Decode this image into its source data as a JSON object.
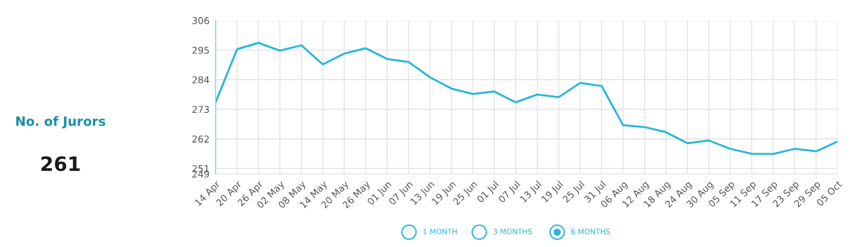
{
  "chart_data": {
    "type": "line",
    "title": "No. of Jurors",
    "subtitle": "261",
    "categories": [
      "14 Apr",
      "20 Apr",
      "26 Apr",
      "02 May",
      "08 May",
      "14 May",
      "20 May",
      "26 May",
      "01 Jun",
      "07 Jun",
      "13 Jun",
      "19 Jun",
      "25 Jun",
      "01 Jul",
      "07 Jul",
      "13 Jul",
      "19 Jul",
      "25 Jul",
      "31 Jul",
      "06 Aug",
      "12 Aug",
      "18 Aug",
      "24 Aug",
      "30 Aug",
      "05 Sep",
      "11 Sep",
      "17 Sep",
      "23 Sep",
      "29 Sep",
      "05 Oct"
    ],
    "series": [
      {
        "color": "#29b6d9",
        "values": [
          275.5,
          295.3,
          297.7,
          294.8,
          296.8,
          289.7,
          293.7,
          295.7,
          291.7,
          290.6,
          284.9,
          280.7,
          278.7,
          279.6,
          275.6,
          278.5,
          277.5,
          282.8,
          281.7,
          267.1,
          266.4,
          264.5,
          260.4,
          261.4,
          258.3,
          256.5,
          256.4,
          258.3,
          257.4,
          261
        ]
      }
    ],
    "ylim": [
      249,
      306
    ],
    "yticks": [
      249,
      251,
      262,
      273,
      284,
      295,
      306
    ],
    "grid": true,
    "marker": "none",
    "line_style": "solid",
    "annotations": [
      "1 MONTH",
      "3 MONTHS",
      "6 MONTHS"
    ]
  }
}
